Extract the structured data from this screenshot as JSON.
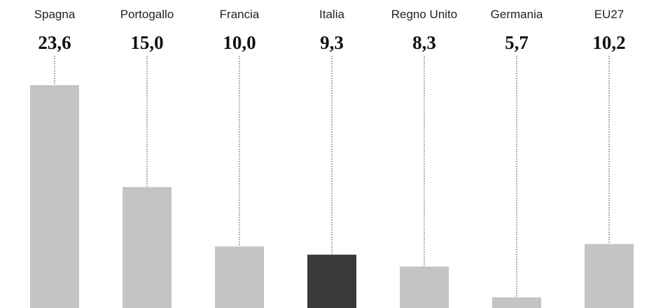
{
  "chart_data": {
    "type": "bar",
    "categories": [
      "Spagna",
      "Portogallo",
      "Francia",
      "Italia",
      "Regno Unito",
      "Germania",
      "EU27"
    ],
    "values": [
      23.6,
      15.0,
      10.0,
      9.3,
      8.3,
      5.7,
      10.2
    ],
    "value_labels": [
      "23,6",
      "15,0",
      "10,0",
      "9,3",
      "8,3",
      "5,7",
      "10,2"
    ],
    "highlight": "Italia",
    "title": "",
    "xlabel": "",
    "ylabel": "",
    "ylim": [
      4.8,
      25
    ],
    "grid": false,
    "legend": "none",
    "colors": {
      "bar": "#c4c4c4",
      "highlight": "#3a3a3a",
      "text": "#111111",
      "leader": "#555555"
    }
  }
}
